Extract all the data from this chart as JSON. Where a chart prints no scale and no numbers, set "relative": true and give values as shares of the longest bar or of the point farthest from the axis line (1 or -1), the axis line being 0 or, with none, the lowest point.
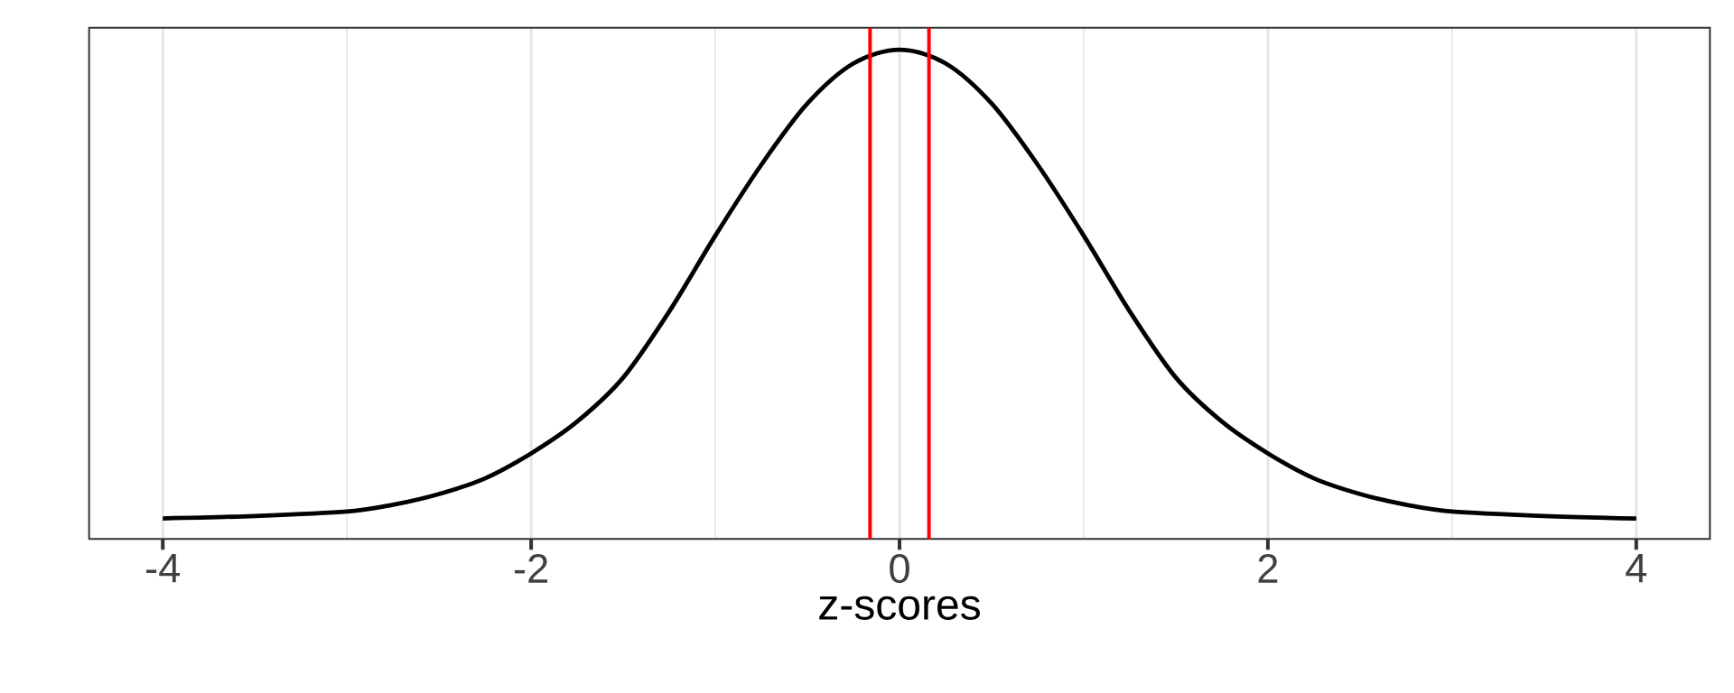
{
  "chart_data": {
    "type": "line",
    "xlabel": "z-scores",
    "relative": true,
    "x": [
      -4,
      -3.5,
      -3,
      -2.75,
      -2.5,
      -2.25,
      -2,
      -1.75,
      -1.5,
      -1.25,
      -1,
      -0.75,
      -0.5,
      -0.25,
      0,
      0.25,
      0.5,
      0.75,
      1,
      1.25,
      1.5,
      1.75,
      2,
      2.25,
      2.5,
      2.75,
      3,
      3.5,
      4
    ],
    "series": [
      {
        "color": "#000000",
        "values": [
          0.042,
          0.047,
          0.056,
          0.07,
          0.092,
          0.124,
          0.175,
          0.24,
          0.33,
          0.465,
          0.62,
          0.765,
          0.89,
          0.972,
          1,
          0.972,
          0.89,
          0.765,
          0.62,
          0.465,
          0.33,
          0.24,
          0.175,
          0.124,
          0.092,
          0.07,
          0.056,
          0.047,
          0.042
        ]
      }
    ],
    "xlim": [
      -4.4,
      4.4
    ],
    "xticks": [
      -4,
      {
        "value": -3,
        "label": null
      },
      -2,
      {
        "value": -1,
        "label": null
      },
      0,
      {
        "value": 1,
        "label": null
      },
      2,
      {
        "value": 3,
        "label": null
      },
      4
    ],
    "grid": "x",
    "tick_labels": "x",
    "ref_lines": [
      {
        "axis": "x",
        "value": -0.16,
        "color": "#ff0000"
      },
      {
        "axis": "x",
        "value": 0.16,
        "color": "#ff0000"
      }
    ]
  }
}
